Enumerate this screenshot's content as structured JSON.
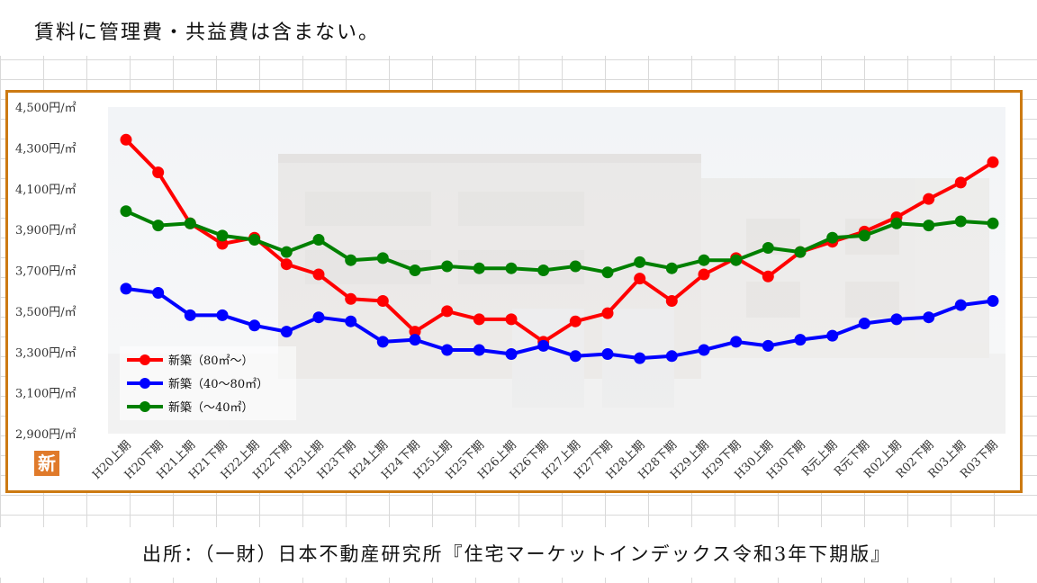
{
  "note": "賃料に管理費・共益費は含まない。",
  "source": "出所：（一財）日本不動産研究所『住宅マーケットインデックス令和3年下期版』",
  "badge_text": "新",
  "colors": {
    "frame": "#cc7a12",
    "badge": "#e07a2a",
    "series": [
      "#ff0000",
      "#0000ff",
      "#008000"
    ]
  },
  "chart_data": {
    "type": "line",
    "title": "",
    "xlabel": "",
    "ylabel": "",
    "ylim": [
      2900,
      4500
    ],
    "y_ticks": [
      "4,500円/㎡",
      "4,300円/㎡",
      "4,100円/㎡",
      "3,900円/㎡",
      "3,700円/㎡",
      "3,500円/㎡",
      "3,300円/㎡",
      "3,100円/㎡",
      "2,900円/㎡"
    ],
    "categories": [
      "H20上期",
      "H20下期",
      "H21上期",
      "H21下期",
      "H22上期",
      "H22下期",
      "H23上期",
      "H23下期",
      "H24上期",
      "H24下期",
      "H25上期",
      "H25下期",
      "H26上期",
      "H26下期",
      "H27上期",
      "H27下期",
      "H28上期",
      "H28下期",
      "H29上期",
      "H29下期",
      "H30上期",
      "H30下期",
      "R元上期",
      "R元下期",
      "R02上期",
      "R02下期",
      "R03上期",
      "R03下期"
    ],
    "legend_position": "bottom-left",
    "grid": false,
    "series": [
      {
        "name": "新築（80㎡～）",
        "color": "#ff0000",
        "values": [
          4340,
          4180,
          3930,
          3830,
          3860,
          3730,
          3680,
          3560,
          3550,
          3400,
          3500,
          3460,
          3460,
          3350,
          3450,
          3490,
          3660,
          3550,
          3680,
          3760,
          3670,
          3790,
          3840,
          3890,
          3960,
          4050,
          4130,
          4230
        ]
      },
      {
        "name": "新築（40～80㎡）",
        "color": "#0000ff",
        "values": [
          3610,
          3590,
          3480,
          3480,
          3430,
          3400,
          3470,
          3450,
          3350,
          3360,
          3310,
          3310,
          3290,
          3330,
          3280,
          3290,
          3270,
          3280,
          3310,
          3350,
          3330,
          3360,
          3380,
          3440,
          3460,
          3470,
          3530,
          3550
        ]
      },
      {
        "name": "新築（～40㎡）",
        "color": "#008000",
        "values": [
          3990,
          3920,
          3930,
          3870,
          3850,
          3790,
          3850,
          3750,
          3760,
          3700,
          3720,
          3710,
          3710,
          3700,
          3720,
          3690,
          3740,
          3710,
          3750,
          3750,
          3810,
          3790,
          3860,
          3870,
          3930,
          3920,
          3940,
          3930
        ]
      }
    ]
  }
}
